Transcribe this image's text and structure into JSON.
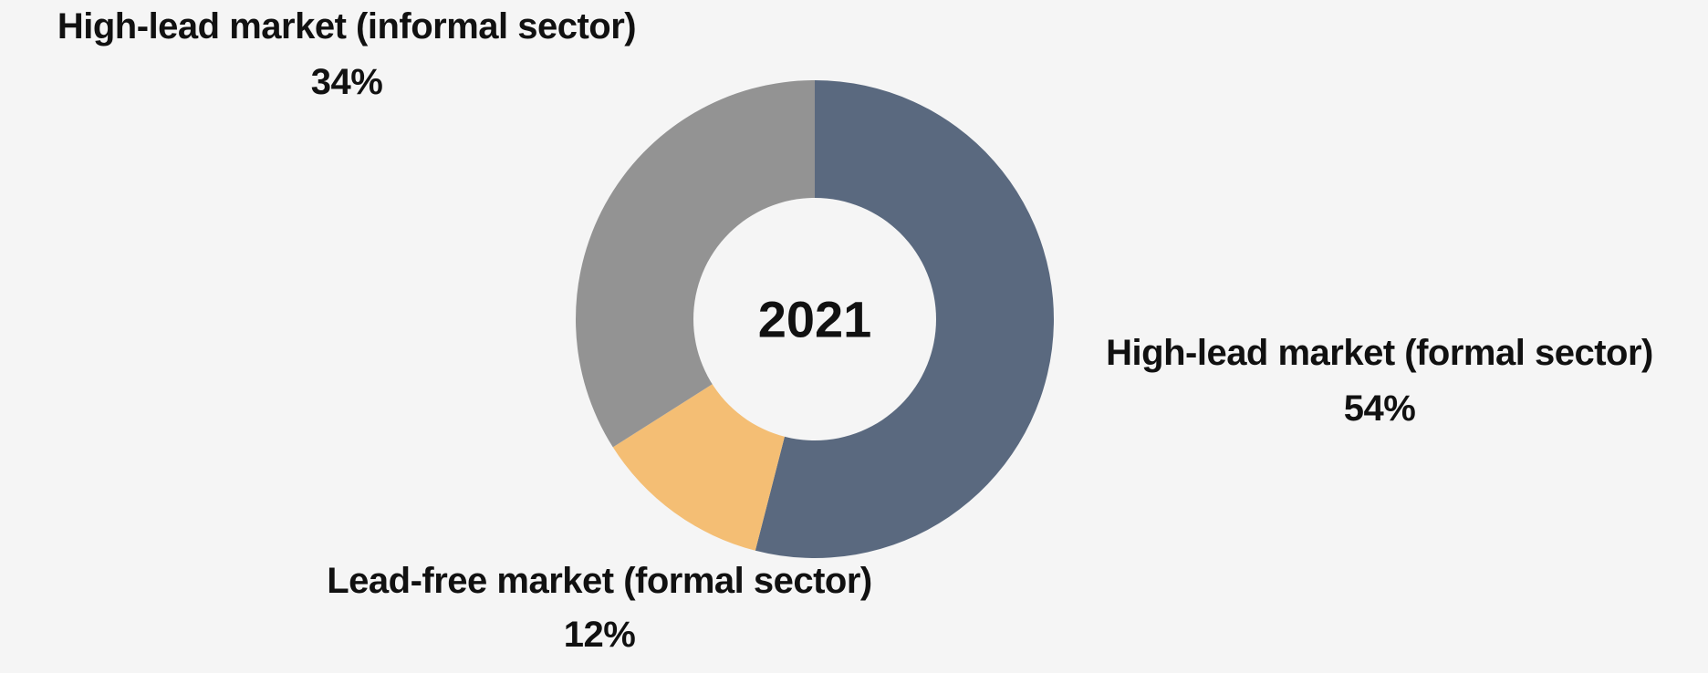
{
  "chart_data": {
    "type": "pie",
    "center_label": "2021",
    "start_angle_deg": 0,
    "direction": "clockwise",
    "slices": [
      {
        "name": "High-lead market (formal sector)",
        "value": 54,
        "value_label": "54%",
        "color": "#5a697f"
      },
      {
        "name": "Lead-free market (formal sector)",
        "value": 12,
        "value_label": "12%",
        "color": "#f4be74"
      },
      {
        "name": "High-lead market (informal sector)",
        "value": 34,
        "value_label": "34%",
        "color": "#939393"
      }
    ]
  }
}
